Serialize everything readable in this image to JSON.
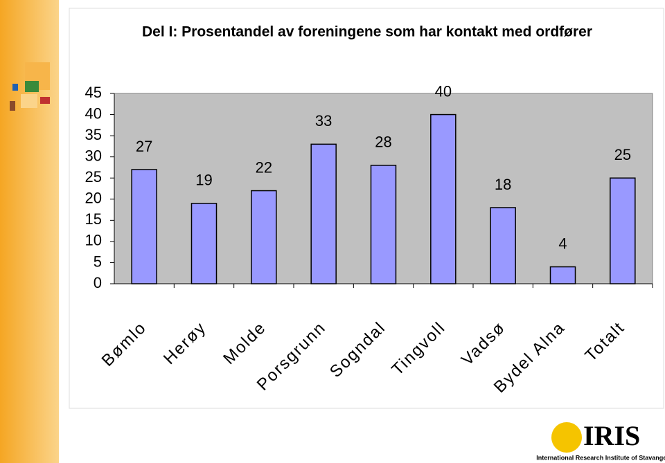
{
  "chart_data": {
    "type": "bar",
    "title": "Del I: Prosentandel av foreningene som har kontakt med ordfører",
    "categories": [
      "Bømlo",
      "Herøy",
      "Molde",
      "Porsgrunn",
      "Sogndal",
      "Tingvoll",
      "Vadsø",
      "Bydel Alna",
      "Totalt"
    ],
    "values": [
      27,
      19,
      22,
      33,
      28,
      40,
      18,
      4,
      25
    ],
    "color": "#9999ff",
    "ylim": [
      0,
      45
    ],
    "yticks": [
      0,
      5,
      10,
      15,
      20,
      25,
      30,
      35,
      40,
      45
    ],
    "grid": false
  },
  "logo": {
    "name": "IRIS",
    "subtitle": "International Research Institute of Stavanger"
  }
}
